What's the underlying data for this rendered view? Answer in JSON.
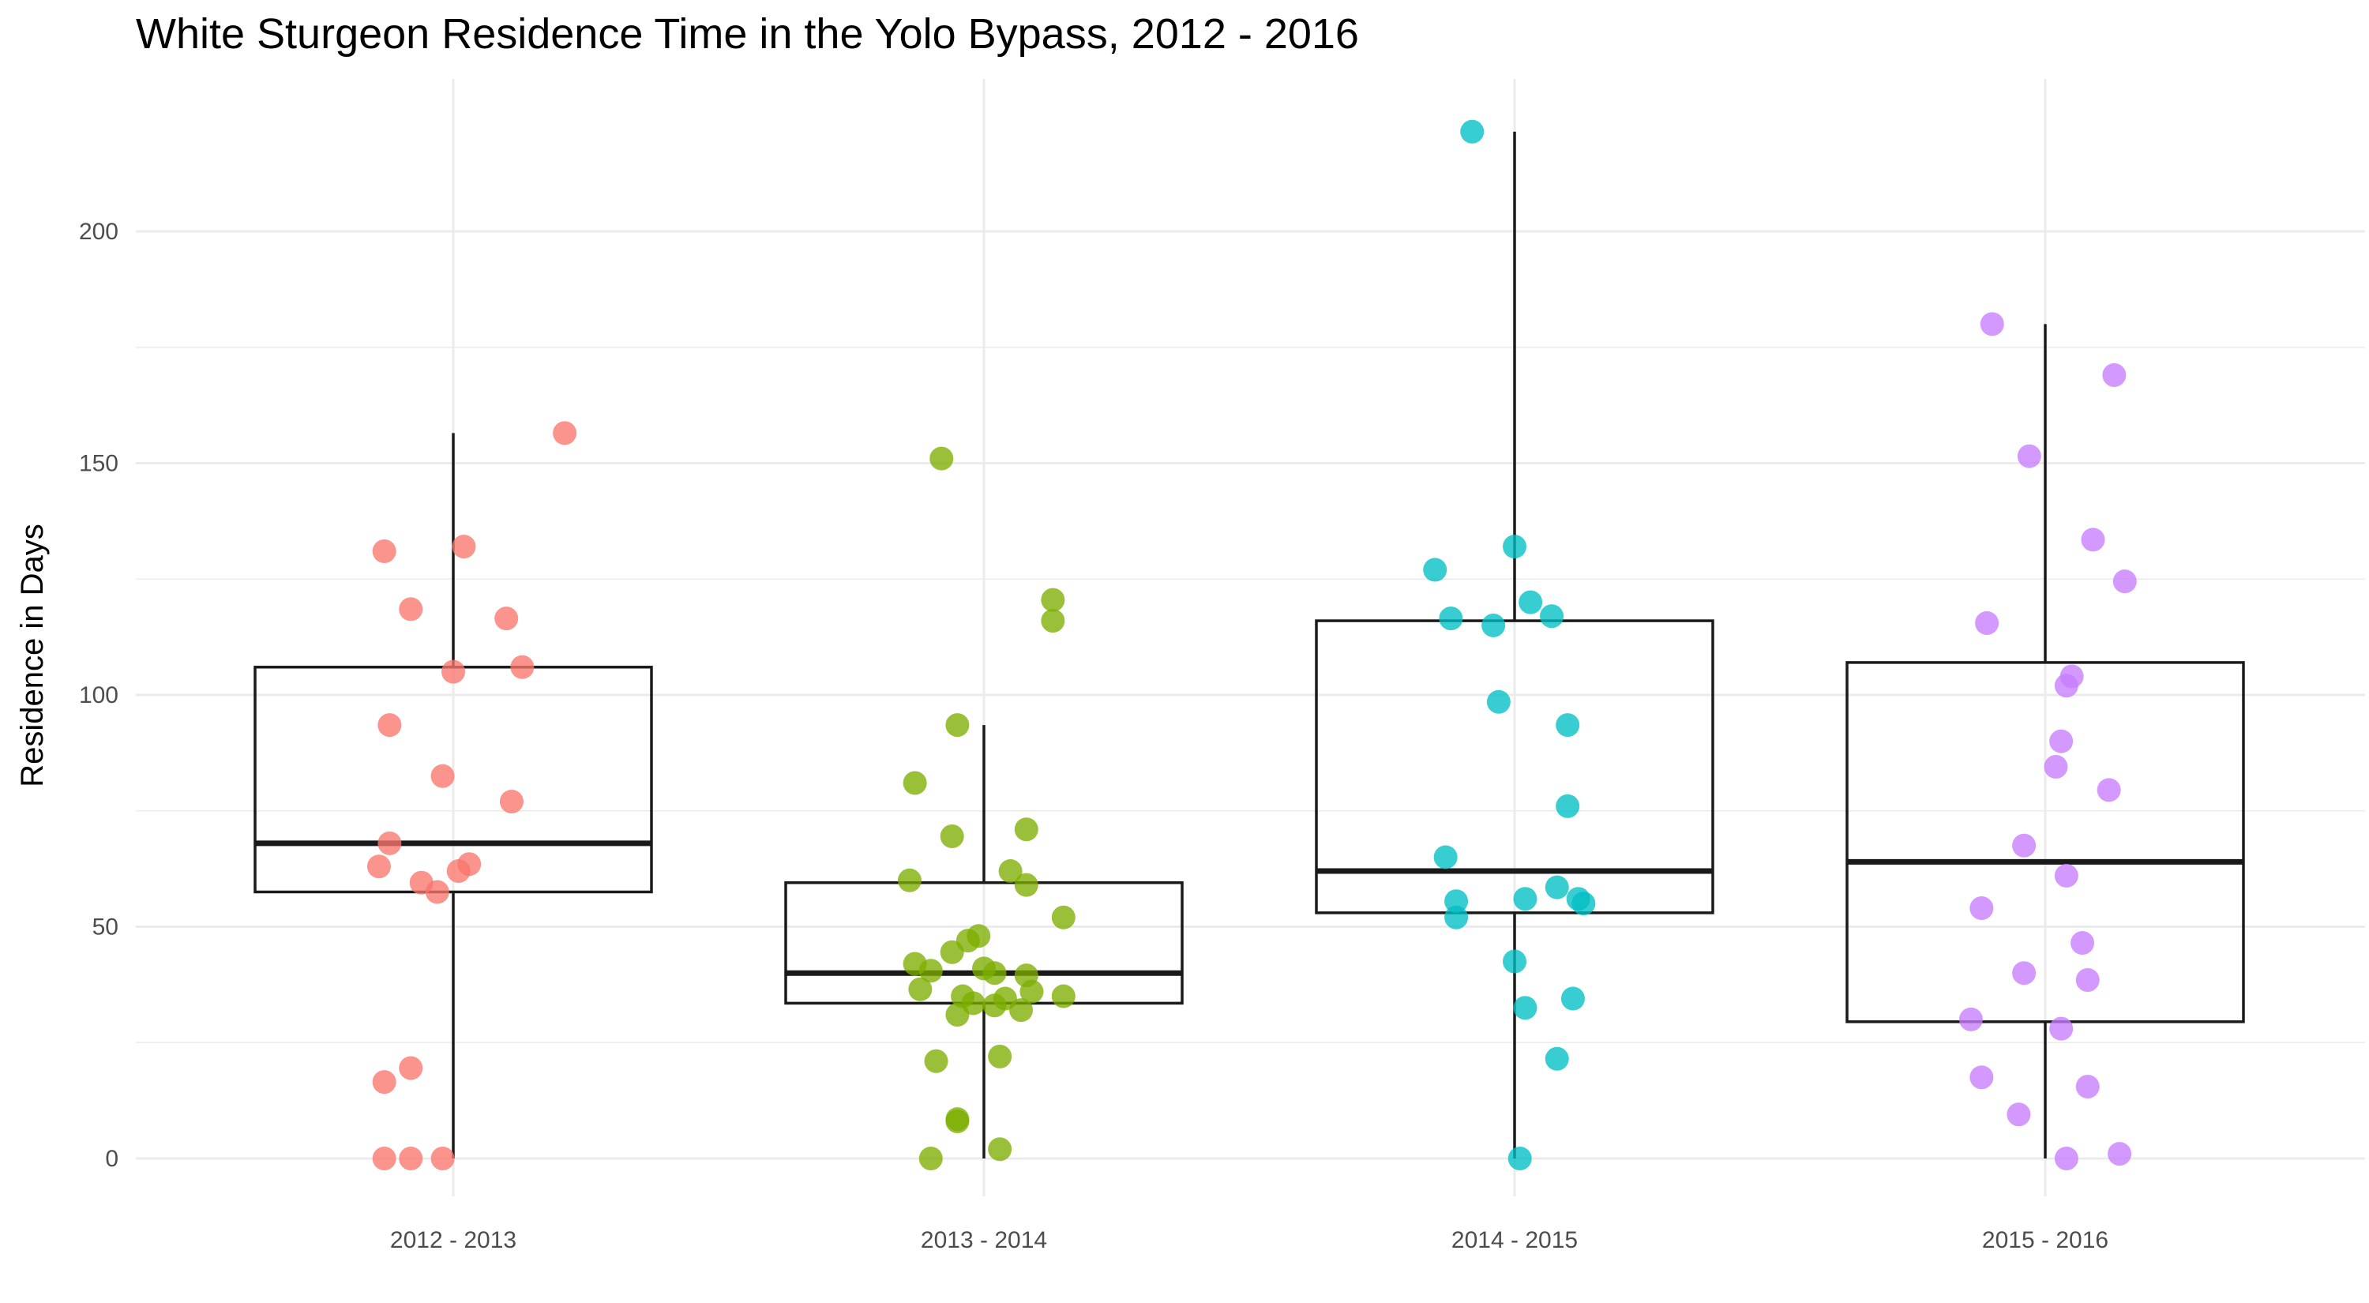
{
  "chart_data": {
    "type": "box",
    "title": "White Sturgeon Residence Time in the Yolo Bypass, 2012 - 2016",
    "xlabel": "",
    "ylabel": "Residence in Days",
    "ylim": [
      -25,
      225
    ],
    "yticks": [
      0,
      50,
      100,
      150,
      200
    ],
    "grid": true,
    "categories": [
      "2012 - 2013",
      "2013 - 2014",
      "2014 - 2015",
      "2015 - 2016"
    ],
    "colors": [
      "#F8766D",
      "#7CAE00",
      "#00BFC4",
      "#C77CFF"
    ],
    "boxes": [
      {
        "category": "2012 - 2013",
        "min": 0,
        "q1": 57.5,
        "median": 68,
        "q3": 106,
        "max": 156.5
      },
      {
        "category": "2013 - 2014",
        "min": 0,
        "q1": 33.5,
        "median": 40,
        "q3": 59.5,
        "max": 93.5
      },
      {
        "category": "2014 - 2015",
        "min": 0,
        "q1": 53,
        "median": 62,
        "q3": 116,
        "max": 221.5
      },
      {
        "category": "2015 - 2016",
        "min": 0,
        "q1": 29.5,
        "median": 64,
        "q3": 107,
        "max": 180
      }
    ],
    "points": [
      [
        [
          0.21,
          156.5
        ],
        [
          0.02,
          132
        ],
        [
          -0.13,
          131
        ],
        [
          -0.08,
          118.5
        ],
        [
          0.1,
          116.5
        ],
        [
          0.13,
          106
        ],
        [
          0.0,
          105
        ],
        [
          -0.12,
          93.5
        ],
        [
          -0.02,
          82.5
        ],
        [
          0.11,
          77
        ],
        [
          -0.12,
          68
        ],
        [
          -0.14,
          63
        ],
        [
          -0.06,
          59.5
        ],
        [
          -0.03,
          57.5
        ],
        [
          0.01,
          62
        ],
        [
          0.03,
          63.5
        ],
        [
          -0.08,
          19.5
        ],
        [
          -0.13,
          16.5
        ],
        [
          -0.13,
          0
        ],
        [
          -0.08,
          0
        ],
        [
          -0.02,
          0
        ]
      ],
      [
        [
          -0.08,
          151
        ],
        [
          0.13,
          120.5
        ],
        [
          0.13,
          116
        ],
        [
          -0.05,
          93.5
        ],
        [
          -0.13,
          81
        ],
        [
          -0.06,
          69.5
        ],
        [
          0.08,
          71
        ],
        [
          -0.14,
          60
        ],
        [
          0.05,
          62
        ],
        [
          0.08,
          59
        ],
        [
          0.15,
          52
        ],
        [
          -0.03,
          47
        ],
        [
          -0.01,
          48
        ],
        [
          -0.06,
          44.5
        ],
        [
          -0.13,
          42
        ],
        [
          -0.1,
          40.5
        ],
        [
          0.0,
          41
        ],
        [
          0.02,
          40
        ],
        [
          0.08,
          39.5
        ],
        [
          -0.12,
          36.5
        ],
        [
          -0.04,
          35
        ],
        [
          0.04,
          34.5
        ],
        [
          0.09,
          36
        ],
        [
          -0.02,
          33.5
        ],
        [
          0.02,
          33
        ],
        [
          0.07,
          32
        ],
        [
          -0.05,
          31
        ],
        [
          0.15,
          35
        ],
        [
          -0.09,
          21
        ],
        [
          0.03,
          22
        ],
        [
          -0.05,
          8.5
        ],
        [
          -0.05,
          8
        ],
        [
          0.03,
          2
        ],
        [
          -0.1,
          0
        ]
      ],
      [
        [
          -0.08,
          221.5
        ],
        [
          0.0,
          132
        ],
        [
          -0.15,
          127
        ],
        [
          0.03,
          120
        ],
        [
          -0.12,
          116.5
        ],
        [
          -0.04,
          115
        ],
        [
          0.07,
          117
        ],
        [
          -0.03,
          98.5
        ],
        [
          0.1,
          93.5
        ],
        [
          0.1,
          76
        ],
        [
          -0.13,
          65
        ],
        [
          -0.11,
          55.5
        ],
        [
          0.02,
          56
        ],
        [
          0.08,
          58.5
        ],
        [
          0.12,
          56
        ],
        [
          0.13,
          55
        ],
        [
          -0.11,
          52
        ],
        [
          0.0,
          42.5
        ],
        [
          0.02,
          32.5
        ],
        [
          0.11,
          34.5
        ],
        [
          0.08,
          21.5
        ],
        [
          0.01,
          0
        ]
      ],
      [
        [
          -0.1,
          180
        ],
        [
          0.13,
          169
        ],
        [
          -0.03,
          151.5
        ],
        [
          0.09,
          133.5
        ],
        [
          0.15,
          124.5
        ],
        [
          -0.11,
          115.5
        ],
        [
          0.05,
          104
        ],
        [
          0.04,
          102
        ],
        [
          0.03,
          90
        ],
        [
          0.02,
          84.5
        ],
        [
          0.12,
          79.5
        ],
        [
          -0.04,
          67.5
        ],
        [
          0.04,
          61
        ],
        [
          -0.12,
          54
        ],
        [
          0.07,
          46.5
        ],
        [
          -0.04,
          40
        ],
        [
          0.08,
          38.5
        ],
        [
          -0.14,
          30
        ],
        [
          0.03,
          28
        ],
        [
          -0.12,
          17.5
        ],
        [
          0.08,
          15.5
        ],
        [
          -0.05,
          9.5
        ],
        [
          0.04,
          0
        ],
        [
          0.14,
          1
        ]
      ]
    ]
  }
}
